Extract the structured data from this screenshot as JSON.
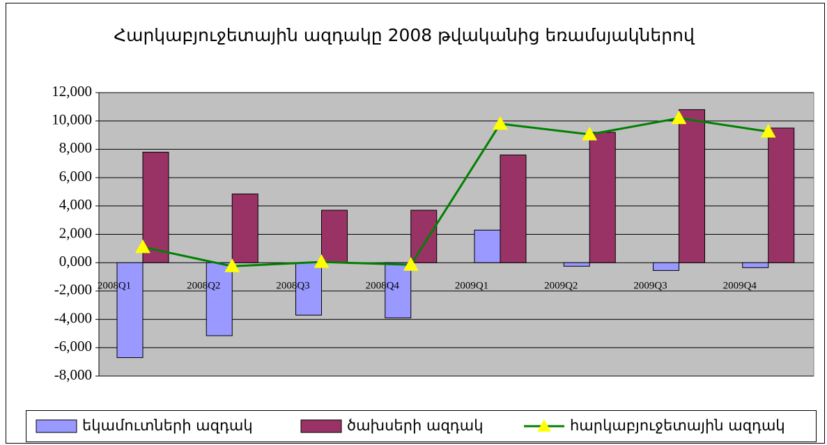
{
  "chart_data": {
    "type": "bar_line",
    "title": "Հարկաբյուջետային ազդակը 2008 թվականից եռամսյակներով",
    "categories": [
      "2008Q1",
      "2008Q2",
      "2008Q3",
      "2008Q4",
      "2009Q1",
      "2009Q2",
      "2009Q3",
      "2009Q4"
    ],
    "series": [
      {
        "name": "եկամուտների ազդակ",
        "type": "bar",
        "color": "#9999ff",
        "values": [
          -6700,
          -5150,
          -3700,
          -3900,
          2300,
          -250,
          -550,
          -350
        ]
      },
      {
        "name": "ծախսերի ազդակ",
        "type": "bar",
        "color": "#993366",
        "values": [
          7800,
          4850,
          3700,
          3700,
          7600,
          9200,
          10800,
          9500
        ]
      },
      {
        "name": "հարկաբյուջետային ազդակ",
        "type": "line",
        "color": "#008000",
        "marker_color": "#ffff00",
        "values": [
          1100,
          -250,
          50,
          -150,
          9800,
          9050,
          10200,
          9250
        ]
      }
    ],
    "ylim": [
      -8000,
      12000
    ],
    "yticks": [
      {
        "value": -8000,
        "label": "-8,000"
      },
      {
        "value": -6000,
        "label": "-6,000"
      },
      {
        "value": -4000,
        "label": "-4,000"
      },
      {
        "value": -2000,
        "label": "-2,000"
      },
      {
        "value": 0,
        "label": "0,000"
      },
      {
        "value": 2000,
        "label": "2,000"
      },
      {
        "value": 4000,
        "label": "4,000"
      },
      {
        "value": 6000,
        "label": "6,000"
      },
      {
        "value": 8000,
        "label": "8,000"
      },
      {
        "value": 10000,
        "label": "10,000"
      },
      {
        "value": 12000,
        "label": "12,000"
      }
    ],
    "grid": true,
    "legend": "bottom"
  }
}
